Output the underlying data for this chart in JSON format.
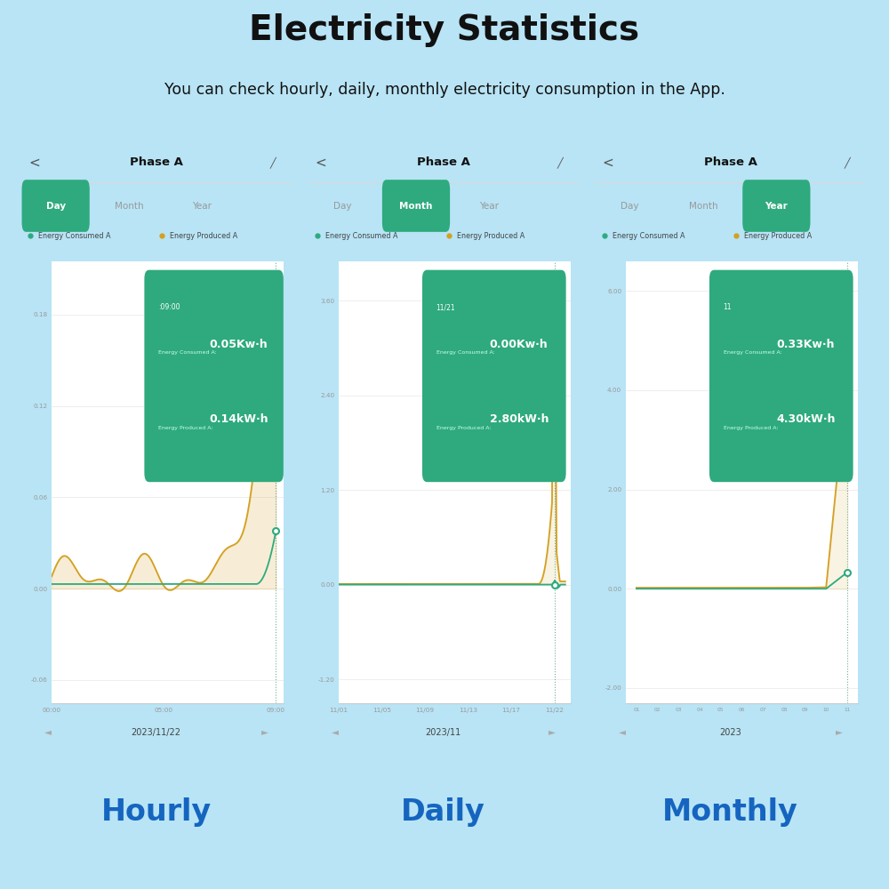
{
  "bg_color": "#b8e4f5",
  "title": "Electricity Statistics",
  "subtitle": "You can check hourly, daily, monthly electricity consumption in the App.",
  "panel_bg": "#f0f0f0",
  "chart_bg": "#ffffff",
  "green_color": "#2eaa7e",
  "orange_color": "#d4a020",
  "tooltip_bg": "#2eaa7e",
  "dashed_color": "#5aaa8a",
  "tab_active_bg": "#2eaa7e",
  "tab_active_text": "#ffffff",
  "tab_inactive_text": "#999999",
  "labels": [
    "Hourly",
    "Daily",
    "Monthly"
  ],
  "labels_color": "#1565c0",
  "panel_titles": [
    "Phase A",
    "Phase A",
    "Phase A"
  ],
  "tab_sets": [
    [
      "Day",
      "Month",
      "Year"
    ],
    [
      "Day",
      "Month",
      "Year"
    ],
    [
      "Day",
      "Month",
      "Year"
    ]
  ],
  "active_tabs": [
    0,
    1,
    2
  ],
  "dates": [
    "2023/11/22",
    "2023/11",
    "2023"
  ],
  "tooltips": [
    {
      "time": ":09:00",
      "consumed": "0.05Kw·h",
      "produced": "0.14kW·h"
    },
    {
      "time": "11/21",
      "consumed": "0.00Kw·h",
      "produced": "2.80kW·h"
    },
    {
      "time": "11",
      "consumed": "0.33Kw·h",
      "produced": "4.30kW·h"
    }
  ]
}
